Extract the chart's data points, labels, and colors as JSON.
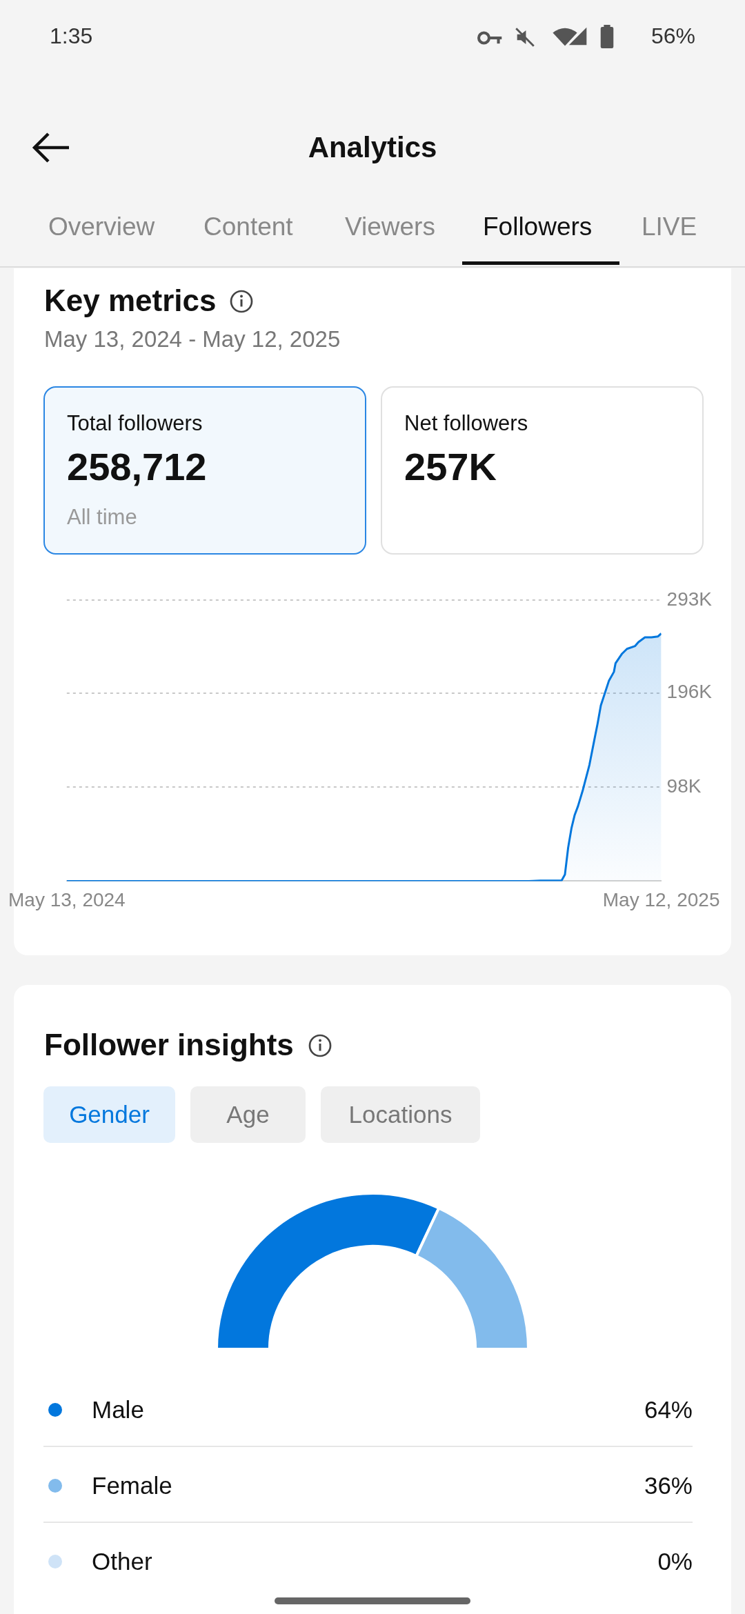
{
  "chart_data": [
    {
      "type": "other",
      "title": "Analytics",
      "annotations": [
        "1:35",
        "56%",
        "Overview",
        "Content",
        "Viewers",
        "Followers",
        "LIVE"
      ]
    },
    {
      "type": "area",
      "title": "Key metrics",
      "subtitle": "May 13, 2024 - May 12, 2025",
      "annotations": [
        "Total followers",
        "258,712",
        "All time",
        "Net followers",
        "257K"
      ],
      "x": [
        "2024-05-13",
        "2025-02-20",
        "2025-02-27",
        "2025-03-12",
        "2025-03-14",
        "2025-03-16",
        "2025-03-18",
        "2025-03-20",
        "2025-03-22",
        "2025-03-25",
        "2025-03-29",
        "2025-04-01",
        "2025-04-03",
        "2025-04-05",
        "2025-04-10",
        "2025-04-13",
        "2025-04-14",
        "2025-04-18",
        "2025-04-21",
        "2025-04-26",
        "2025-04-28",
        "2025-05-02",
        "2025-05-06",
        "2025-05-10",
        "2025-05-12"
      ],
      "series": [
        {
          "color": "#0277dd",
          "values": [
            0,
            0,
            500,
            700,
            6700,
            35000,
            55000,
            69000,
            78000,
            95000,
            121000,
            147000,
            164000,
            183000,
            209000,
            218000,
            227000,
            237000,
            242000,
            245000,
            249000,
            254000,
            254000,
            255000,
            258000
          ]
        }
      ],
      "xlim": [
        "2024-05-13",
        "2025-05-12"
      ],
      "xticks": [
        {
          "value": "2024-05-13",
          "label": "May 13, 2024"
        },
        {
          "value": "2025-05-12",
          "label": "May 12, 2025"
        }
      ],
      "ylim": [
        0,
        293000
      ],
      "yticks": [
        {
          "value": 0,
          "label": null
        },
        {
          "value": 98000,
          "label": "98K"
        },
        {
          "value": 196000,
          "label": "196K"
        },
        {
          "value": 293000,
          "label": "293K"
        }
      ],
      "grid": "y",
      "legend": false
    },
    {
      "type": "donut",
      "title": "Follower insights",
      "annotations": [
        "Gender",
        "Age",
        "Locations"
      ],
      "categories": [
        "Male",
        "Female",
        "Other"
      ],
      "values": [
        64,
        36,
        0
      ],
      "colors": [
        "#0277dd",
        "#82bbec",
        "#cfe3f7"
      ],
      "value_labels": [
        "64%",
        "36%",
        "0%"
      ],
      "legend": "bottom"
    }
  ]
}
